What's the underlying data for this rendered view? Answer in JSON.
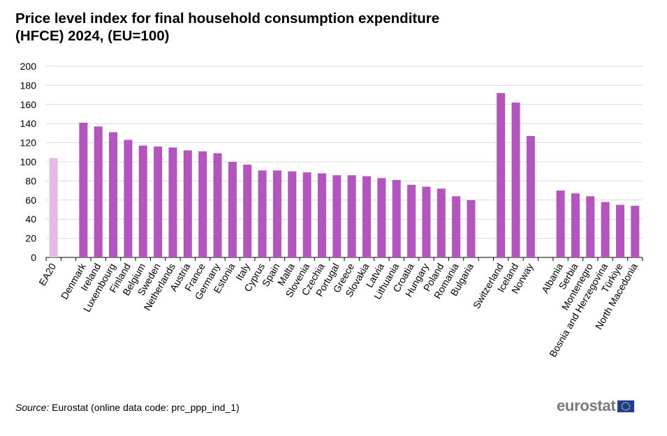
{
  "chart_data": {
    "type": "bar",
    "title": "Price level index for final household consumption expenditure (HFCE) 2024, (EU=100)",
    "title_lines": [
      "Price level index for final household consumption expenditure",
      "(HFCE) 2024, (EU=100)"
    ],
    "xlabel": "",
    "ylabel": "",
    "ylim": [
      0,
      200
    ],
    "yticks": [
      0,
      20,
      40,
      60,
      80,
      100,
      120,
      140,
      160,
      180,
      200
    ],
    "grid": true,
    "groups": [
      {
        "categories": [
          "EA20"
        ],
        "values": [
          104
        ],
        "color": "#e2bbe6"
      },
      {
        "categories": [
          "Denmark",
          "Ireland",
          "Luxembourg",
          "Finland",
          "Belgium",
          "Sweden",
          "Netherlands",
          "Austria",
          "France",
          "Germany",
          "Estonia",
          "Italy",
          "Cyprus",
          "Spain",
          "Malta",
          "Slovenia",
          "Czechia",
          "Portugal",
          "Greece",
          "Slovakia",
          "Latvia",
          "Lithuania",
          "Croatia",
          "Hungary",
          "Poland",
          "Romania",
          "Bulgaria"
        ],
        "values": [
          141,
          137,
          131,
          123,
          117,
          116,
          115,
          112,
          111,
          109,
          100,
          97,
          91,
          91,
          90,
          89,
          88,
          86,
          86,
          85,
          83,
          81,
          76,
          74,
          72,
          64,
          60
        ],
        "color": "#b354bf"
      },
      {
        "categories": [
          "Switzerland",
          "Iceland",
          "Norway"
        ],
        "values": [
          172,
          162,
          127
        ],
        "color": "#b354bf"
      },
      {
        "categories": [
          "Albania",
          "Serbia",
          "Montenegro",
          "Bosnia and Herzegovina",
          "Türkiye",
          "North Macedonia"
        ],
        "values": [
          70,
          67,
          64,
          58,
          55,
          54
        ],
        "color": "#b354bf"
      }
    ]
  },
  "source": {
    "label": "Source:",
    "text": " Eurostat (online data code: prc_ppp_ind_1)"
  },
  "logo": {
    "text": "eurostat"
  }
}
